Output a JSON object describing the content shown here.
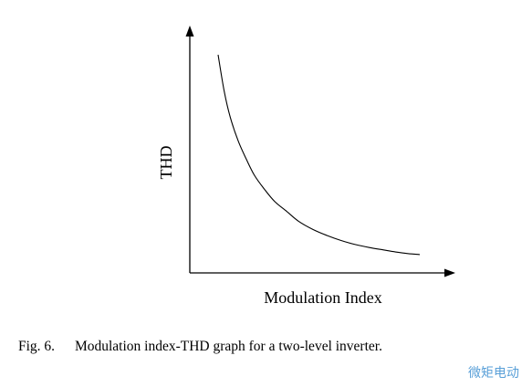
{
  "chart_data": {
    "type": "line",
    "title": "",
    "xlabel": "Modulation Index",
    "ylabel": "THD",
    "grid": false,
    "legend": "none",
    "series": [
      {
        "x": [
          0.0,
          0.03,
          0.06,
          0.1,
          0.14,
          0.18,
          0.23,
          0.28,
          0.34,
          0.4,
          0.47,
          0.54,
          0.61,
          0.68,
          0.75,
          0.82,
          0.88,
          0.94,
          1.0
        ],
        "y": [
          1.0,
          0.82,
          0.69,
          0.57,
          0.48,
          0.4,
          0.33,
          0.27,
          0.22,
          0.17,
          0.13,
          0.1,
          0.075,
          0.055,
          0.04,
          0.028,
          0.018,
          0.01,
          0.005
        ]
      }
    ],
    "line_color": "#000000"
  },
  "caption": {
    "label": "Fig. 6.",
    "text": "Modulation index-THD graph for a two-level inverter."
  },
  "watermark": "微矩电动"
}
